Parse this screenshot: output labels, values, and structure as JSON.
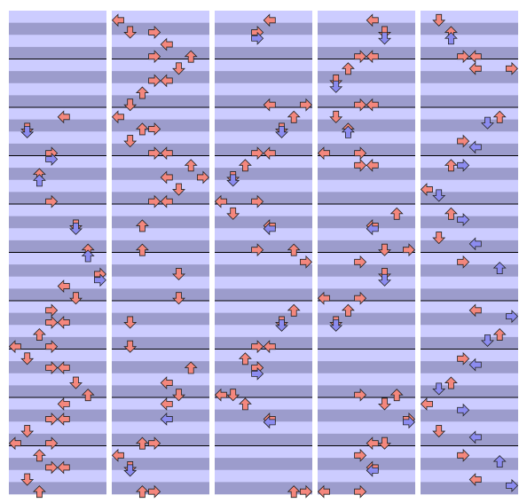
{
  "panels": [
    {
      "notes": [
        [
          34,
          4
        ],
        [
          38,
          1
        ],
        [
          39,
          1,
          1
        ],
        [
          46,
          3
        ],
        [
          48,
          3,
          1
        ],
        [
          53,
          2
        ],
        [
          55,
          2,
          1
        ],
        [
          62,
          3
        ],
        [
          70,
          5
        ],
        [
          71,
          5,
          1
        ],
        [
          78,
          6
        ],
        [
          80,
          6,
          1
        ],
        [
          86,
          7
        ],
        [
          88,
          7,
          1
        ],
        [
          90,
          4
        ],
        [
          94,
          5
        ],
        [
          98,
          3
        ],
        [
          102,
          3
        ],
        [
          102,
          4
        ],
        [
          106,
          2
        ],
        [
          110,
          0
        ],
        [
          110,
          3
        ],
        [
          114,
          1
        ],
        [
          117,
          3
        ],
        [
          117,
          4
        ],
        [
          122,
          5
        ],
        [
          126,
          6
        ],
        [
          129,
          4
        ],
        [
          134,
          3
        ],
        [
          134,
          4
        ],
        [
          138,
          1
        ],
        [
          142,
          0
        ],
        [
          142,
          3
        ],
        [
          146,
          2
        ],
        [
          150,
          3
        ],
        [
          150,
          4
        ],
        [
          154,
          1
        ],
        [
          158,
          2
        ]
      ]
    },
    {
      "notes": [
        [
          2,
          0
        ],
        [
          6,
          1
        ],
        [
          6,
          3
        ],
        [
          10,
          4
        ],
        [
          14,
          3
        ],
        [
          14,
          6
        ],
        [
          18,
          5
        ],
        [
          22,
          3
        ],
        [
          22,
          4
        ],
        [
          26,
          2
        ],
        [
          30,
          1
        ],
        [
          34,
          0
        ],
        [
          38,
          2
        ],
        [
          38,
          3
        ],
        [
          42,
          1
        ],
        [
          46,
          3
        ],
        [
          46,
          4
        ],
        [
          50,
          6
        ],
        [
          54,
          4
        ],
        [
          54,
          7
        ],
        [
          58,
          5
        ],
        [
          62,
          3
        ],
        [
          62,
          4
        ],
        [
          70,
          2
        ],
        [
          78,
          2
        ],
        [
          86,
          5
        ],
        [
          94,
          5
        ],
        [
          102,
          1
        ],
        [
          110,
          1
        ],
        [
          117,
          6
        ],
        [
          122,
          4
        ],
        [
          126,
          5
        ],
        [
          129,
          4
        ],
        [
          134,
          4,
          1
        ],
        [
          142,
          2
        ],
        [
          142,
          3
        ],
        [
          146,
          0
        ],
        [
          150,
          1
        ],
        [
          151,
          1,
          1
        ],
        [
          158,
          2
        ],
        [
          158,
          3
        ]
      ]
    },
    {
      "notes": [
        [
          2,
          4
        ],
        [
          6,
          3
        ],
        [
          8,
          3,
          1
        ],
        [
          30,
          4
        ],
        [
          30,
          7
        ],
        [
          34,
          6
        ],
        [
          38,
          5
        ],
        [
          39,
          5,
          1
        ],
        [
          46,
          3
        ],
        [
          46,
          4
        ],
        [
          50,
          2
        ],
        [
          54,
          1
        ],
        [
          55,
          1,
          1
        ],
        [
          62,
          0
        ],
        [
          62,
          3
        ],
        [
          66,
          1
        ],
        [
          70,
          4
        ],
        [
          71,
          4,
          1
        ],
        [
          78,
          3
        ],
        [
          78,
          6
        ],
        [
          82,
          7
        ],
        [
          98,
          6
        ],
        [
          102,
          5
        ],
        [
          103,
          5,
          1
        ],
        [
          110,
          3
        ],
        [
          110,
          4
        ],
        [
          114,
          2
        ],
        [
          117,
          3
        ],
        [
          119,
          3,
          1
        ],
        [
          126,
          0
        ],
        [
          126,
          1
        ],
        [
          129,
          2
        ],
        [
          134,
          4
        ],
        [
          135,
          4,
          1
        ],
        [
          158,
          6
        ],
        [
          158,
          7
        ]
      ]
    },
    {
      "notes": [
        [
          2,
          4
        ],
        [
          6,
          5
        ],
        [
          8,
          5,
          1
        ],
        [
          14,
          3
        ],
        [
          14,
          4
        ],
        [
          18,
          2
        ],
        [
          22,
          1
        ],
        [
          24,
          1,
          1
        ],
        [
          30,
          3
        ],
        [
          30,
          4
        ],
        [
          34,
          1
        ],
        [
          38,
          2
        ],
        [
          39,
          2,
          1
        ],
        [
          46,
          0
        ],
        [
          46,
          3
        ],
        [
          50,
          3
        ],
        [
          50,
          4
        ],
        [
          66,
          6
        ],
        [
          70,
          4
        ],
        [
          71,
          4,
          1
        ],
        [
          78,
          5
        ],
        [
          78,
          7
        ],
        [
          82,
          3
        ],
        [
          86,
          5
        ],
        [
          88,
          5,
          1
        ],
        [
          94,
          0
        ],
        [
          94,
          3
        ],
        [
          98,
          2
        ],
        [
          102,
          1
        ],
        [
          103,
          1,
          1
        ],
        [
          126,
          3
        ],
        [
          126,
          6
        ],
        [
          129,
          5
        ],
        [
          134,
          7
        ],
        [
          135,
          7,
          1
        ],
        [
          142,
          4
        ],
        [
          142,
          5
        ],
        [
          146,
          3
        ],
        [
          150,
          4
        ],
        [
          151,
          4,
          1
        ],
        [
          158,
          0
        ],
        [
          158,
          3
        ]
      ]
    },
    {
      "notes": [
        [
          2,
          1
        ],
        [
          6,
          2
        ],
        [
          8,
          2,
          1
        ],
        [
          14,
          3
        ],
        [
          14,
          4
        ],
        [
          18,
          4
        ],
        [
          18,
          7
        ],
        [
          34,
          6
        ],
        [
          36,
          5,
          1
        ],
        [
          42,
          3
        ],
        [
          44,
          4,
          1
        ],
        [
          50,
          2
        ],
        [
          50,
          3,
          1
        ],
        [
          58,
          0
        ],
        [
          60,
          1,
          1
        ],
        [
          66,
          2
        ],
        [
          68,
          3,
          1
        ],
        [
          74,
          1
        ],
        [
          76,
          4,
          1
        ],
        [
          82,
          3
        ],
        [
          84,
          6,
          1
        ],
        [
          98,
          4
        ],
        [
          100,
          7,
          1
        ],
        [
          106,
          6
        ],
        [
          108,
          5,
          1
        ],
        [
          114,
          3
        ],
        [
          116,
          4,
          1
        ],
        [
          122,
          2
        ],
        [
          124,
          1,
          1
        ],
        [
          129,
          0
        ],
        [
          131,
          3,
          1
        ],
        [
          138,
          1
        ],
        [
          140,
          4,
          1
        ],
        [
          146,
          3
        ],
        [
          148,
          6,
          1
        ],
        [
          154,
          4
        ],
        [
          156,
          7,
          1
        ]
      ]
    }
  ]
}
